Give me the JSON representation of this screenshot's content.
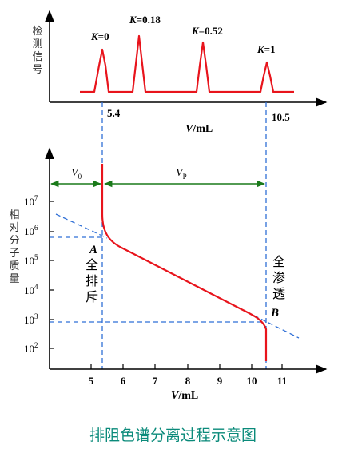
{
  "top_panel": {
    "y_axis_label": "检测信号",
    "x_axis_label": "V/mL",
    "tick_left": "5.4",
    "tick_right": "10.5",
    "peaks": [
      {
        "label": "K=0",
        "k_letter": "K",
        "k_value": "=0",
        "volume": 5.4
      },
      {
        "label": "K=0.18",
        "k_letter": "K",
        "k_value": "=0.18",
        "volume": 6.4
      },
      {
        "label": "K=0.52",
        "k_letter": "K",
        "k_value": "=0.52",
        "volume": 8.6
      },
      {
        "label": "K=1",
        "k_letter": "K",
        "k_value": "=1",
        "volume": 10.5
      }
    ]
  },
  "bottom_panel": {
    "y_axis_label": "相对分子质量",
    "x_axis_label": "V/mL",
    "x_ticks": [
      "5",
      "6",
      "7",
      "8",
      "9",
      "10",
      "11"
    ],
    "y_ticks": [
      {
        "base": "10",
        "exp": "7"
      },
      {
        "base": "10",
        "exp": "6"
      },
      {
        "base": "10",
        "exp": "5"
      },
      {
        "base": "10",
        "exp": "4"
      },
      {
        "base": "10",
        "exp": "3"
      },
      {
        "base": "10",
        "exp": "2"
      }
    ],
    "v0_label": {
      "main": "V",
      "sub": "0"
    },
    "vp_label": {
      "main": "V",
      "sub": "P"
    },
    "point_a": "A",
    "point_b": "B",
    "label_full_exclusion": "全排斥",
    "label_full_permeation": "全渗透"
  },
  "caption": "排阻色谱分离过程示意图",
  "colors": {
    "curve": "#e8141c",
    "guide": "#2f6fd6",
    "arrow": "#1a7a1a",
    "caption": "#0a8a7a",
    "axis": "#000000"
  }
}
